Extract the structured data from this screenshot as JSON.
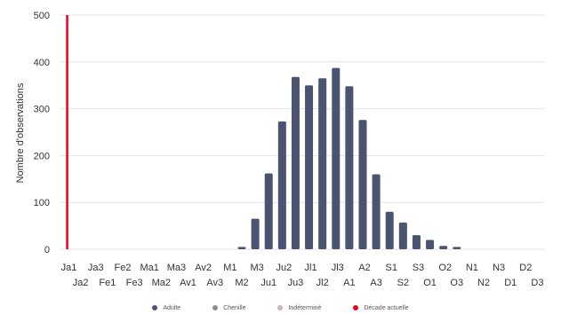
{
  "chart_data": {
    "type": "bar",
    "ylabel": "Nombre d'observations",
    "ylim": [
      0,
      500
    ],
    "yticks": [
      0,
      100,
      200,
      300,
      400,
      500
    ],
    "grid": true,
    "categories": [
      "Ja1",
      "Ja2",
      "Ja3",
      "Fe1",
      "Fe2",
      "Fe3",
      "Ma1",
      "Ma2",
      "Ma3",
      "Av1",
      "Av2",
      "Av3",
      "M1",
      "M2",
      "M3",
      "Ju1",
      "Ju2",
      "Ju3",
      "Jl1",
      "Jl2",
      "Jl3",
      "A1",
      "A2",
      "A3",
      "S1",
      "S2",
      "S3",
      "O1",
      "O2",
      "O3",
      "N1",
      "N2",
      "N3",
      "D1",
      "D2",
      "D3"
    ],
    "series": [
      {
        "name": "Adulte",
        "color": "#4a5470",
        "values": [
          0,
          0,
          0,
          0,
          0,
          0,
          0,
          0,
          0,
          0,
          0,
          0,
          0,
          5,
          65,
          162,
          273,
          368,
          350,
          365,
          387,
          348,
          276,
          160,
          80,
          57,
          30,
          20,
          7,
          5,
          0,
          0,
          0,
          0,
          0,
          0
        ]
      },
      {
        "name": "Chenille",
        "color": "#8f8b8b",
        "values": [
          0,
          0,
          0,
          0,
          0,
          0,
          0,
          0,
          0,
          0,
          0,
          0,
          0,
          0,
          0,
          0,
          0,
          0,
          0,
          0,
          0,
          0,
          0,
          0,
          0,
          0,
          0,
          0,
          0,
          0,
          0,
          0,
          0,
          0,
          0,
          0
        ]
      },
      {
        "name": "Indéterminé",
        "color": "#c9b5b8",
        "values": [
          0,
          0,
          0,
          0,
          0,
          0,
          0,
          0,
          0,
          0,
          0,
          0,
          0,
          0,
          0,
          0,
          0,
          0,
          0,
          0,
          0,
          0,
          0,
          0,
          0,
          0,
          0,
          0,
          0,
          0,
          0,
          0,
          0,
          0,
          0,
          0
        ]
      }
    ],
    "current_decade": {
      "name": "Décade actuelle",
      "category": "Ja1",
      "color": "#e8001c"
    },
    "legend_position": "bottom"
  }
}
